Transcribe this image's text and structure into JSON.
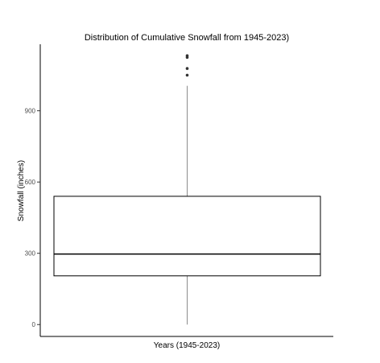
{
  "chart_data": {
    "type": "box",
    "title": "Distribution of Cumulative Snowfall from 1945-2023)",
    "xlabel": "Years (1945-2023)",
    "ylabel": "Snowfall (inches)",
    "yticks": [
      0,
      300,
      600,
      900
    ],
    "ylim": [
      -50,
      1180
    ],
    "grid": false,
    "legend": "none",
    "box": {
      "category": "",
      "whisker_low": 0,
      "q1": 205,
      "median": 297,
      "q3": 540,
      "whisker_high": 1005
    },
    "outliers": [
      1050,
      1078,
      1125,
      1132
    ]
  },
  "colors": {
    "axis": "#000000",
    "whisker": "#8c8c8c",
    "box_edge": "#000000",
    "outlier": "#333333",
    "background": "#ffffff"
  }
}
